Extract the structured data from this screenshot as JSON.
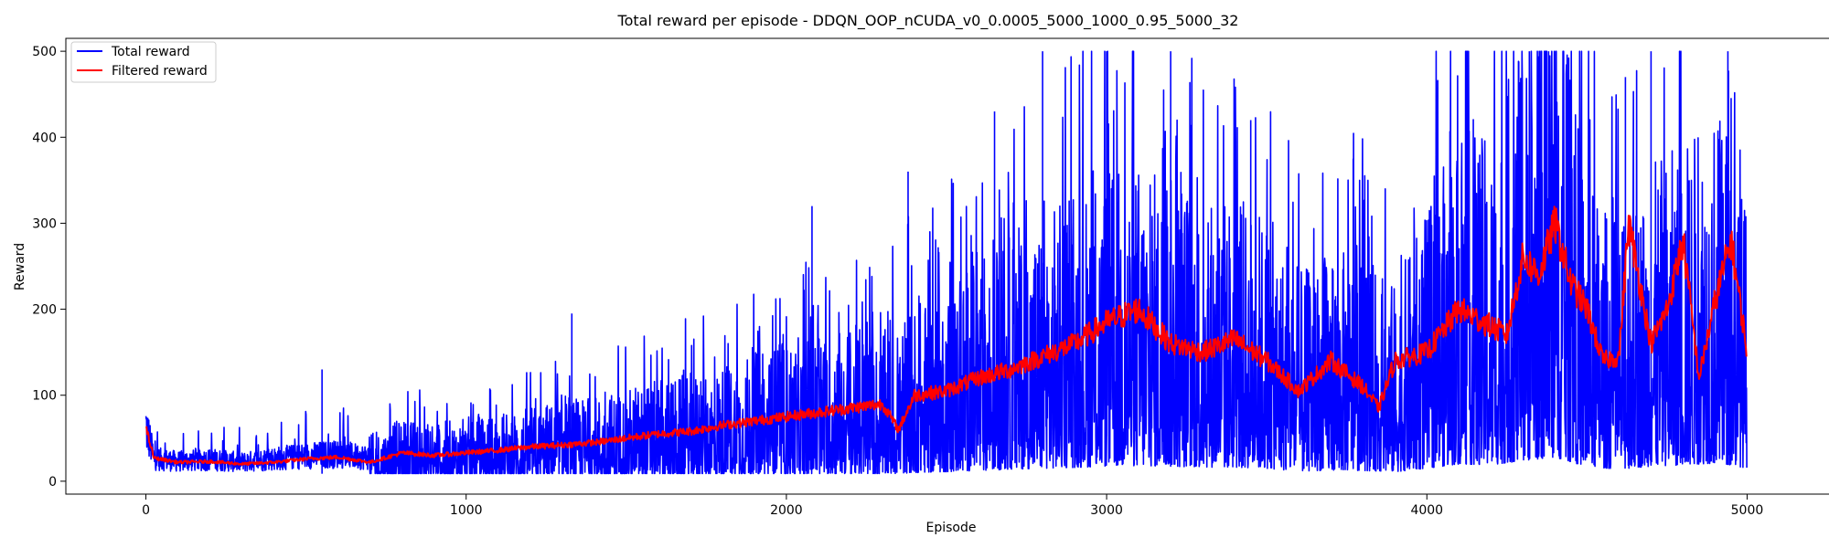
{
  "chart_data": {
    "type": "line",
    "title": "Total reward per episode - DDQN_OOP_nCUDA_v0_0.0005_5000_1000_0.95_5000_32",
    "xlabel": "Episode",
    "ylabel": "Reward",
    "xlim": [
      -250,
      5250
    ],
    "ylim": [
      -15,
      515
    ],
    "xticks": [
      0,
      1000,
      2000,
      3000,
      4000,
      5000
    ],
    "yticks": [
      0,
      100,
      200,
      300,
      400,
      500
    ],
    "grid": false,
    "legend": {
      "position": "top-left"
    },
    "n_episodes": 5000,
    "series": [
      {
        "name": "Total reward",
        "color": "#0000ff",
        "x": [
          0,
          25,
          100,
          200,
          300,
          400,
          500,
          600,
          700,
          800,
          900,
          1000,
          1100,
          1200,
          1300,
          1400,
          1500,
          1600,
          1700,
          1800,
          1900,
          2000,
          2100,
          2200,
          2300,
          2400,
          2500,
          2600,
          2700,
          2800,
          2900,
          3000,
          3100,
          3200,
          3300,
          3400,
          3500,
          3600,
          3700,
          3800,
          3900,
          4000,
          4100,
          4200,
          4300,
          4400,
          4500,
          4600,
          4700,
          4800,
          4900,
          5000
        ],
        "values": [
          62,
          25,
          22,
          24,
          21,
          25,
          28,
          30,
          26,
          35,
          32,
          36,
          38,
          42,
          45,
          48,
          52,
          56,
          60,
          66,
          72,
          78,
          82,
          88,
          80,
          100,
          110,
          125,
          140,
          150,
          160,
          175,
          180,
          170,
          165,
          160,
          150,
          115,
          130,
          125,
          110,
          150,
          200,
          190,
          240,
          280,
          170,
          140,
          175,
          190,
          210,
          155
        ],
        "peaks": [
          {
            "x": 550,
            "y": 130
          },
          {
            "x": 1330,
            "y": 195
          },
          {
            "x": 2080,
            "y": 320
          },
          {
            "x": 2380,
            "y": 360
          },
          {
            "x": 2650,
            "y": 430
          },
          {
            "x": 2800,
            "y": 500
          },
          {
            "x": 3000,
            "y": 500
          },
          {
            "x": 3200,
            "y": 500
          },
          {
            "x": 3450,
            "y": 420
          },
          {
            "x": 3770,
            "y": 375
          },
          {
            "x": 4030,
            "y": 405
          },
          {
            "x": 4320,
            "y": 500
          },
          {
            "x": 4380,
            "y": 500
          },
          {
            "x": 4620,
            "y": 470
          },
          {
            "x": 4700,
            "y": 500
          },
          {
            "x": 4940,
            "y": 500
          }
        ]
      },
      {
        "name": "Filtered reward",
        "color": "#ff0000",
        "x": [
          0,
          25,
          100,
          200,
          300,
          400,
          500,
          600,
          700,
          800,
          900,
          1000,
          1100,
          1200,
          1300,
          1400,
          1500,
          1600,
          1700,
          1800,
          1900,
          2000,
          2100,
          2200,
          2300,
          2350,
          2400,
          2500,
          2600,
          2700,
          2800,
          2900,
          3000,
          3100,
          3200,
          3300,
          3400,
          3500,
          3600,
          3700,
          3800,
          3850,
          3900,
          4000,
          4100,
          4200,
          4250,
          4300,
          4350,
          4400,
          4450,
          4500,
          4550,
          4600,
          4630,
          4700,
          4750,
          4800,
          4850,
          4900,
          4950,
          5000
        ],
        "values": [
          62,
          27,
          22,
          23,
          20,
          22,
          26,
          28,
          22,
          33,
          30,
          33,
          36,
          40,
          42,
          45,
          50,
          55,
          58,
          65,
          70,
          75,
          80,
          85,
          90,
          60,
          100,
          105,
          120,
          130,
          145,
          160,
          185,
          200,
          160,
          150,
          165,
          140,
          105,
          140,
          110,
          85,
          140,
          150,
          200,
          180,
          170,
          260,
          240,
          300,
          230,
          200,
          140,
          145,
          300,
          160,
          200,
          280,
          120,
          210,
          280,
          150
        ]
      }
    ]
  }
}
